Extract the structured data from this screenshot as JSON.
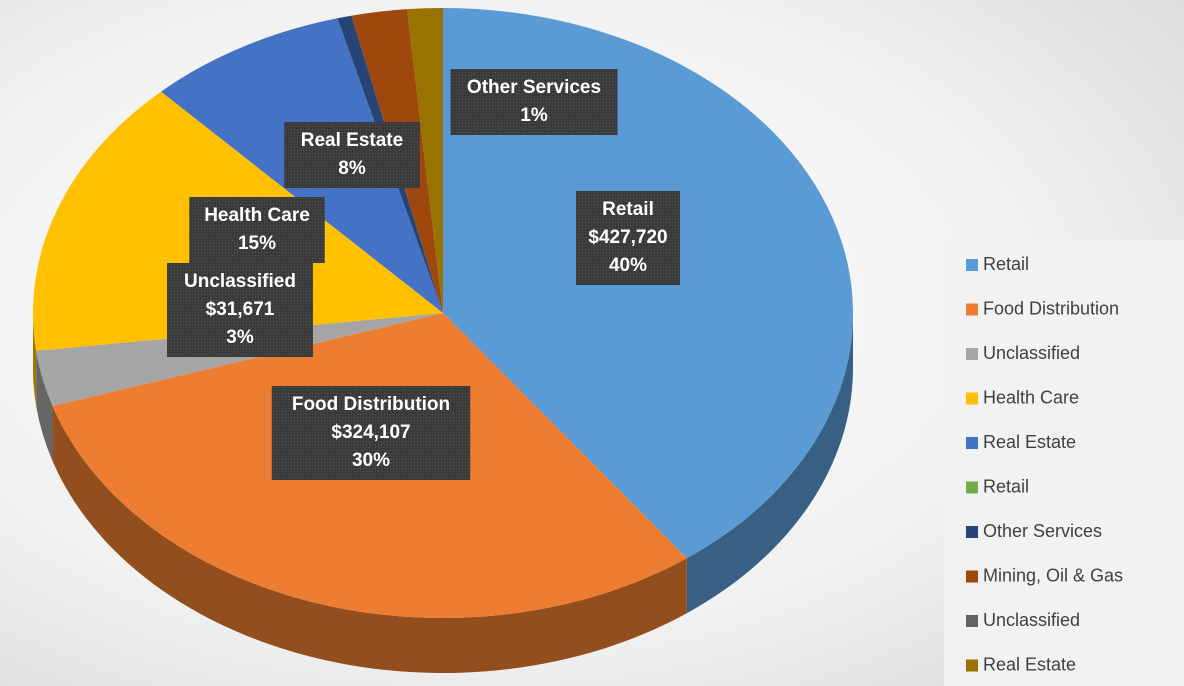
{
  "chart_data": {
    "type": "pie3d",
    "categories": [
      "Retail",
      "Food Distribution",
      "Unclassified",
      "Health Care",
      "Real Estate",
      "Retail",
      "Other Services",
      "Mining, Oil & Gas",
      "Unclassified",
      "Real Estate"
    ],
    "values": [
      427720,
      324107,
      31671,
      160000,
      85000,
      0,
      6000,
      23500,
      0,
      15000
    ],
    "value_labels": [
      "$427,720",
      "$324,107",
      "$31,671",
      null,
      null,
      null,
      null,
      null,
      null,
      null
    ],
    "percent_labels": [
      "40%",
      "30%",
      "3%",
      "15%",
      "8%",
      null,
      "1%",
      null,
      null,
      null
    ],
    "colors": [
      "#5b9bd5",
      "#ed7d31",
      "#a5a5a5",
      "#ffc000",
      "#4472c4",
      "#70ad47",
      "#264478",
      "#9e480e",
      "#636363",
      "#997300"
    ],
    "legend": "right"
  }
}
